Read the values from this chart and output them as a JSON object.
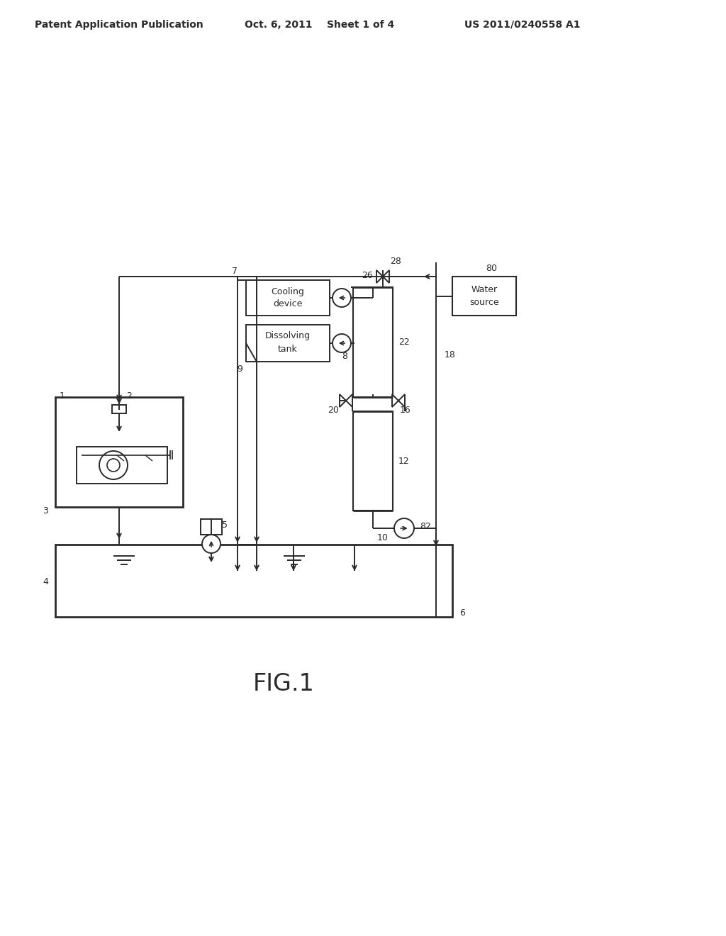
{
  "bg_color": "#ffffff",
  "line_color": "#2a2a2a",
  "header_text1": "Patent Application Publication",
  "header_text2": "Oct. 6, 2011",
  "header_text3": "Sheet 1 of 4",
  "header_text4": "US 2011/0240558 A1",
  "figure_label": "FIG.1"
}
